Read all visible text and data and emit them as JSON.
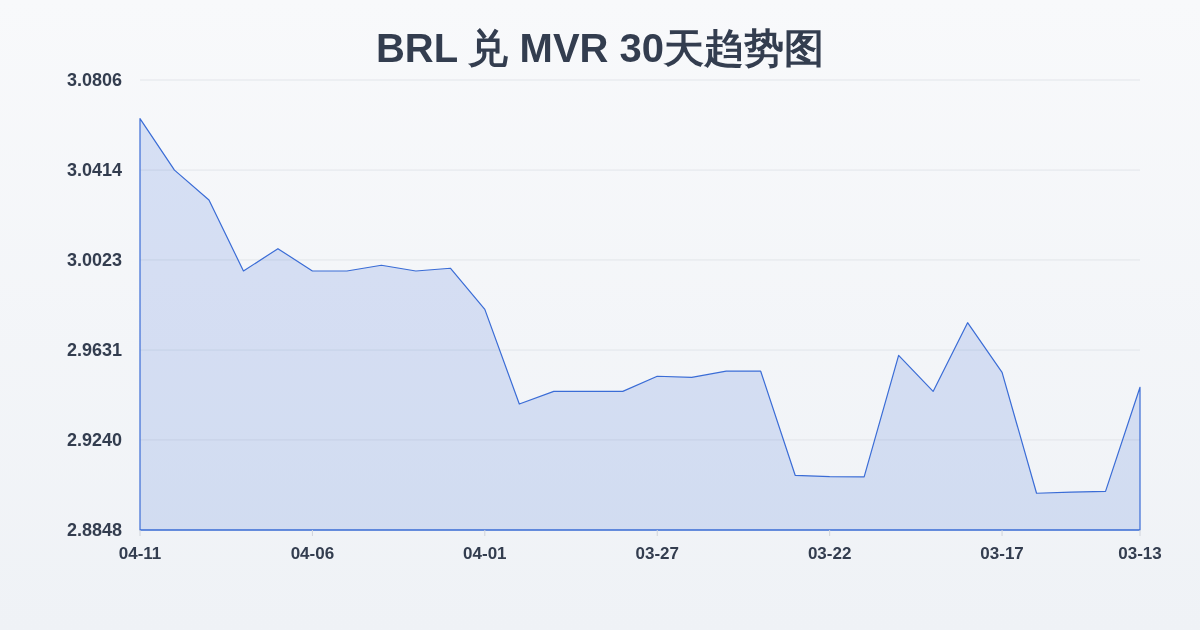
{
  "chart_data": {
    "type": "area",
    "title": "BRL 兑 MVR 30天趋势图",
    "categories": [
      "04-11",
      null,
      null,
      null,
      null,
      "04-06",
      null,
      null,
      null,
      null,
      "04-01",
      null,
      null,
      null,
      null,
      "03-27",
      null,
      null,
      null,
      null,
      "03-22",
      null,
      null,
      null,
      null,
      "03-17",
      null,
      null,
      null,
      "03-13"
    ],
    "series": [
      {
        "color": "#3a6cd6",
        "values": [
          3.0638,
          3.0414,
          3.0284,
          2.9975,
          3.0072,
          2.9975,
          2.9975,
          3.0,
          2.9975,
          2.9987,
          2.9808,
          2.9396,
          2.9451,
          2.9451,
          2.9451,
          2.9517,
          2.9512,
          2.9539,
          2.9539,
          2.9086,
          2.908,
          2.9079,
          2.9608,
          2.9451,
          2.975,
          2.9534,
          2.9008,
          2.9013,
          2.9016,
          2.9469
        ]
      }
    ],
    "ylim": [
      2.8848,
      3.0806
    ],
    "yticks": [
      2.8848,
      {
        "value": 2.924,
        "label": "2.9240"
      },
      2.9631,
      3.0023,
      3.0414,
      3.0806
    ],
    "grid": "y"
  }
}
